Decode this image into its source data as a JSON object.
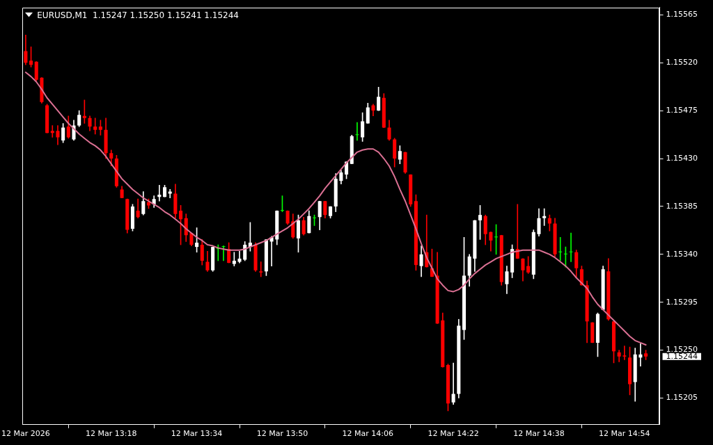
{
  "chart_data": {
    "type": "candlestick",
    "title": "EURUSD,M1  1.15247 1.15250 1.15241 1.15244",
    "categories": [
      "12 Mar 2026",
      null,
      null,
      null,
      null,
      null,
      null,
      null,
      null,
      null,
      null,
      null,
      null,
      null,
      null,
      null,
      "12 Mar 13:18",
      null,
      null,
      null,
      null,
      null,
      null,
      null,
      null,
      null,
      null,
      null,
      null,
      null,
      null,
      null,
      "12 Mar 13:34",
      null,
      null,
      null,
      null,
      null,
      null,
      null,
      null,
      null,
      null,
      null,
      null,
      null,
      null,
      null,
      "12 Mar 13:50",
      null,
      null,
      null,
      null,
      null,
      null,
      null,
      null,
      null,
      null,
      null,
      null,
      null,
      null,
      null,
      "12 Mar 14:06",
      null,
      null,
      null,
      null,
      null,
      null,
      null,
      null,
      null,
      null,
      null,
      null,
      null,
      null,
      null,
      "12 Mar 14:22",
      null,
      null,
      null,
      null,
      null,
      null,
      null,
      null,
      null,
      null,
      null,
      null,
      null,
      null,
      null,
      "12 Mar 14:38",
      null,
      null,
      null,
      null,
      null,
      null,
      null,
      null,
      null,
      null,
      null,
      null,
      null,
      null,
      null,
      "12 Mar 14:54",
      null,
      null,
      null,
      null
    ],
    "ohlc": [
      [
        1.15531,
        1.15546,
        1.15518,
        1.1552
      ],
      [
        1.15522,
        1.15535,
        1.15516,
        1.15518
      ],
      [
        1.15521,
        1.15521,
        1.15503,
        1.15504
      ],
      [
        1.15506,
        1.15506,
        1.15482,
        1.15483
      ],
      [
        1.1548,
        1.15481,
        1.15454,
        1.15454
      ],
      [
        1.15456,
        1.15461,
        1.1545,
        1.15454
      ],
      [
        1.15456,
        1.15461,
        1.15443,
        1.1545
      ],
      [
        1.15447,
        1.15463,
        1.15445,
        1.15459
      ],
      [
        1.1546,
        1.1547,
        1.15449,
        1.1545
      ],
      [
        1.15448,
        1.15466,
        1.15447,
        1.15461
      ],
      [
        1.15461,
        1.15475,
        1.1546,
        1.15471
      ],
      [
        1.1547,
        1.15485,
        1.15463,
        1.15468
      ],
      [
        1.15468,
        1.1547,
        1.15456,
        1.1546
      ],
      [
        1.1546,
        1.15468,
        1.15453,
        1.15457
      ],
      [
        1.1546,
        1.15466,
        1.15452,
        1.15457
      ],
      [
        1.15457,
        1.15468,
        1.1543,
        1.15435
      ],
      [
        1.15435,
        1.15438,
        1.15423,
        1.1543
      ],
      [
        1.1543,
        1.15433,
        1.15403,
        1.15404
      ],
      [
        1.15401,
        1.15404,
        1.15393,
        1.15393
      ],
      [
        1.15392,
        1.15392,
        1.1536,
        1.15363
      ],
      [
        1.15364,
        1.15387,
        1.15362,
        1.15385
      ],
      [
        1.15381,
        1.15392,
        1.15374,
        1.15375
      ],
      [
        1.15378,
        1.15399,
        1.15377,
        1.1539
      ],
      [
        1.15389,
        1.15392,
        1.15383,
        1.15386
      ],
      [
        1.15387,
        1.15395,
        1.15384,
        1.15392
      ],
      [
        1.15394,
        1.15405,
        1.1539,
        1.15396
      ],
      [
        1.15394,
        1.15405,
        1.15394,
        1.15403
      ],
      [
        1.15397,
        1.15401,
        1.15393,
        1.15399
      ],
      [
        1.15397,
        1.15406,
        1.15374,
        1.15378
      ],
      [
        1.15381,
        1.15386,
        1.15349,
        1.15373
      ],
      [
        1.15374,
        1.15378,
        1.15352,
        1.15358
      ],
      [
        1.1536,
        1.1536,
        1.15348,
        1.15349
      ],
      [
        1.15347,
        1.15365,
        1.15342,
        1.15351
      ],
      [
        1.15349,
        1.15354,
        1.1533,
        1.15334
      ],
      [
        1.15333,
        1.15343,
        1.15324,
        1.15325
      ],
      [
        1.15325,
        1.15347,
        1.15324,
        1.15347
      ],
      [
        1.15345,
        1.15349,
        1.15334,
        1.15345
      ],
      [
        1.15347,
        1.15348,
        1.15334,
        1.15347
      ],
      [
        1.15345,
        1.15351,
        1.15332,
        1.15332
      ],
      [
        1.15331,
        1.15342,
        1.15329,
        1.15334
      ],
      [
        1.15333,
        1.15343,
        1.15332,
        1.15336
      ],
      [
        1.15335,
        1.15352,
        1.15334,
        1.15349
      ],
      [
        1.15347,
        1.1537,
        1.15343,
        1.15351
      ],
      [
        1.15349,
        1.15351,
        1.15324,
        1.15325
      ],
      [
        1.15324,
        1.15333,
        1.15319,
        1.15323
      ],
      [
        1.15324,
        1.15354,
        1.1532,
        1.15354
      ],
      [
        1.15352,
        1.15357,
        1.15329,
        1.15356
      ],
      [
        1.15354,
        1.15381,
        1.15349,
        1.15381
      ],
      [
        1.15381,
        1.15395,
        1.1538,
        1.15381
      ],
      [
        1.15381,
        1.15381,
        1.15368,
        1.15369
      ],
      [
        1.15371,
        1.15378,
        1.15355,
        1.15356
      ],
      [
        1.15355,
        1.15377,
        1.15342,
        1.15372
      ],
      [
        1.15372,
        1.15375,
        1.15358,
        1.15359
      ],
      [
        1.1536,
        1.15381,
        1.1536,
        1.15376
      ],
      [
        1.15374,
        1.15377,
        1.15367,
        1.15374
      ],
      [
        1.15375,
        1.1539,
        1.15363,
        1.1539
      ],
      [
        1.1539,
        1.1539,
        1.15374,
        1.15377
      ],
      [
        1.15376,
        1.15385,
        1.15374,
        1.15385
      ],
      [
        1.15385,
        1.15416,
        1.1538,
        1.15411
      ],
      [
        1.15409,
        1.15419,
        1.15406,
        1.15417
      ],
      [
        1.15415,
        1.15427,
        1.15411,
        1.15427
      ],
      [
        1.15425,
        1.15452,
        1.15425,
        1.15451
      ],
      [
        1.15452,
        1.15464,
        1.15447,
        1.15452
      ],
      [
        1.1545,
        1.15473,
        1.15446,
        1.15465
      ],
      [
        1.15463,
        1.15482,
        1.15463,
        1.15478
      ],
      [
        1.1548,
        1.15481,
        1.1547,
        1.15475
      ],
      [
        1.15475,
        1.15497,
        1.15475,
        1.15488
      ],
      [
        1.15487,
        1.15491,
        1.15459,
        1.15459
      ],
      [
        1.15459,
        1.15466,
        1.15447,
        1.15448
      ],
      [
        1.15448,
        1.15449,
        1.15422,
        1.1543
      ],
      [
        1.15429,
        1.15442,
        1.15425,
        1.15437
      ],
      [
        1.15436,
        1.15436,
        1.15416,
        1.15417
      ],
      [
        1.15415,
        1.15415,
        1.15385,
        1.15387
      ],
      [
        1.1539,
        1.15396,
        1.15325,
        1.1533
      ],
      [
        1.15329,
        1.15348,
        1.15319,
        1.1534
      ],
      [
        1.15342,
        1.15377,
        1.15328,
        1.15328
      ],
      [
        1.15327,
        1.15345,
        1.15319,
        1.15319
      ],
      [
        1.1532,
        1.15342,
        1.15275,
        1.15275
      ],
      [
        1.15278,
        1.15285,
        1.15234,
        1.15234
      ],
      [
        1.15236,
        1.15237,
        1.15193,
        1.152
      ],
      [
        1.15201,
        1.15238,
        1.15199,
        1.15209
      ],
      [
        1.15209,
        1.15279,
        1.15205,
        1.15273
      ],
      [
        1.15269,
        1.15356,
        1.1526,
        1.1532
      ],
      [
        1.1532,
        1.1534,
        1.1531,
        1.15338
      ],
      [
        1.15336,
        1.15372,
        1.15324,
        1.15372
      ],
      [
        1.15372,
        1.15386,
        1.15354,
        1.15377
      ],
      [
        1.15376,
        1.15377,
        1.15349,
        1.15359
      ],
      [
        1.15361,
        1.15361,
        1.15343,
        1.15353
      ],
      [
        1.15356,
        1.15368,
        1.1534,
        1.15356
      ],
      [
        1.15358,
        1.15358,
        1.15311,
        1.15314
      ],
      [
        1.15312,
        1.15329,
        1.15303,
        1.15324
      ],
      [
        1.15323,
        1.15349,
        1.15318,
        1.15345
      ],
      [
        1.15345,
        1.15387,
        1.15336,
        1.15336
      ],
      [
        1.15336,
        1.15336,
        1.15315,
        1.15325
      ],
      [
        1.15329,
        1.15338,
        1.15322,
        1.15323
      ],
      [
        1.15321,
        1.15363,
        1.15317,
        1.15361
      ],
      [
        1.15359,
        1.15383,
        1.15357,
        1.15374
      ],
      [
        1.15374,
        1.15383,
        1.15367,
        1.15376
      ],
      [
        1.15374,
        1.15377,
        1.15362,
        1.15369
      ],
      [
        1.15369,
        1.15374,
        1.15338,
        1.1534
      ],
      [
        1.15342,
        1.15356,
        1.15334,
        1.15342
      ],
      [
        1.1534,
        1.15347,
        1.15328,
        1.1534
      ],
      [
        1.15342,
        1.1536,
        1.15333,
        1.15342
      ],
      [
        1.15342,
        1.15344,
        1.15318,
        1.15327
      ],
      [
        1.15326,
        1.15329,
        1.15311,
        1.15311
      ],
      [
        1.15311,
        1.15315,
        1.15257,
        1.15277
      ],
      [
        1.15276,
        1.15276,
        1.15257,
        1.15257
      ],
      [
        1.15257,
        1.15285,
        1.15244,
        1.15284
      ],
      [
        1.15288,
        1.15329,
        1.15288,
        1.15326
      ],
      [
        1.15324,
        1.15336,
        1.15278,
        1.15279
      ],
      [
        1.15277,
        1.15277,
        1.15238,
        1.15249
      ],
      [
        1.15248,
        1.1525,
        1.15239,
        1.15244
      ],
      [
        1.15245,
        1.15254,
        1.15241,
        1.15244
      ],
      [
        1.15243,
        1.15253,
        1.15208,
        1.15218
      ],
      [
        1.1522,
        1.15252,
        1.15202,
        1.15246
      ],
      [
        1.15243,
        1.15256,
        1.15235,
        1.15246
      ],
      [
        1.15247,
        1.1525,
        1.15241,
        1.15244
      ]
    ],
    "colors": [
      "#ff0000",
      "#ff0000",
      "#ff0000",
      "#ff0000",
      "#ff0000",
      "#ff0000",
      "#ff0000",
      "#ffffff",
      "#ff0000",
      "#ffffff",
      "#ffffff",
      "#ff0000",
      "#ff0000",
      "#ff0000",
      "#ff0000",
      "#ff0000",
      "#ff0000",
      "#ff0000",
      "#ff0000",
      "#ff0000",
      "#ffffff",
      "#ff0000",
      "#ffffff",
      "#ff0000",
      "#ffffff",
      "#ffffff",
      "#ffffff",
      "#ffffff",
      "#ff0000",
      "#ff0000",
      "#ff0000",
      "#ff0000",
      "#ffffff",
      "#ff0000",
      "#ff0000",
      "#ffffff",
      "#00ff00",
      "#00ff00",
      "#ff0000",
      "#ffffff",
      "#ffffff",
      "#ffffff",
      "#ffffff",
      "#ff0000",
      "#ff0000",
      "#ffffff",
      "#ffffff",
      "#ffffff",
      "#00ff00",
      "#ff0000",
      "#ff0000",
      "#ffffff",
      "#ff0000",
      "#ffffff",
      "#00ff00",
      "#ffffff",
      "#ff0000",
      "#ffffff",
      "#ffffff",
      "#ffffff",
      "#ffffff",
      "#ffffff",
      "#00ff00",
      "#ffffff",
      "#ffffff",
      "#ff0000",
      "#ffffff",
      "#ff0000",
      "#ff0000",
      "#ff0000",
      "#ffffff",
      "#ff0000",
      "#ff0000",
      "#ff0000",
      "#ffffff",
      "#ff0000",
      "#ff0000",
      "#ff0000",
      "#ff0000",
      "#ff0000",
      "#ffffff",
      "#ffffff",
      "#ffffff",
      "#ffffff",
      "#ffffff",
      "#ffffff",
      "#ff0000",
      "#ff0000",
      "#00ff00",
      "#ff0000",
      "#ffffff",
      "#ffffff",
      "#ff0000",
      "#ff0000",
      "#ff0000",
      "#ffffff",
      "#ffffff",
      "#ffffff",
      "#ff0000",
      "#ff0000",
      "#00ff00",
      "#00ff00",
      "#00ff00",
      "#ff0000",
      "#ff0000",
      "#ff0000",
      "#ff0000",
      "#ffffff",
      "#ffffff",
      "#ff0000",
      "#ff0000",
      "#ff0000",
      "#ff0000",
      "#ff0000",
      "#ffffff",
      "#ffffff",
      "#ff0000"
    ],
    "series": [
      {
        "type": "line",
        "color": "#db7093",
        "values": [
          1.15511,
          1.15507,
          1.15502,
          1.15495,
          1.15487,
          1.15481,
          1.15475,
          1.15469,
          1.15463,
          1.15458,
          1.15453,
          1.15449,
          1.15445,
          1.15442,
          1.15438,
          1.15432,
          1.15425,
          1.15418,
          1.15411,
          1.15406,
          1.15401,
          1.15397,
          1.15393,
          1.1539,
          1.15387,
          1.15384,
          1.1538,
          1.15377,
          1.15373,
          1.15369,
          1.15364,
          1.1536,
          1.15356,
          1.15353,
          1.15349,
          1.15348,
          1.15346,
          1.15345,
          1.15344,
          1.15344,
          1.15344,
          1.15345,
          1.15347,
          1.15349,
          1.15351,
          1.15353,
          1.15356,
          1.15359,
          1.15362,
          1.15365,
          1.15369,
          1.15373,
          1.15378,
          1.15383,
          1.15389,
          1.15395,
          1.15402,
          1.15408,
          1.15414,
          1.1542,
          1.15426,
          1.15431,
          1.15436,
          1.15438,
          1.15439,
          1.15439,
          1.15436,
          1.1543,
          1.15423,
          1.15413,
          1.15401,
          1.1539,
          1.15377,
          1.15364,
          1.1535,
          1.15337,
          1.15327,
          1.15317,
          1.15311,
          1.15306,
          1.15305,
          1.15307,
          1.15311,
          1.15317,
          1.15322,
          1.15326,
          1.1533,
          1.15333,
          1.15336,
          1.15338,
          1.1534,
          1.15342,
          1.15343,
          1.15344,
          1.15344,
          1.15344,
          1.15344,
          1.15342,
          1.1534,
          1.15337,
          1.15333,
          1.15329,
          1.15324,
          1.15318,
          1.15313,
          1.15308,
          1.153,
          1.15293,
          1.15288,
          1.15283,
          1.15278,
          1.15273,
          1.15268,
          1.15263,
          1.15259,
          1.15257,
          1.15255
        ]
      }
    ],
    "ylim": [
      1.1518,
      1.15572
    ],
    "yticks": [
      1.15205,
      {
        "value": 1.1525,
        "label": "1.15250"
      },
      1.15295,
      {
        "value": 1.1534,
        "label": "1.15340"
      },
      1.15385,
      {
        "value": 1.1543,
        "label": "1.15430"
      },
      1.15475,
      {
        "value": 1.1552,
        "label": "1.15520"
      },
      1.15565
    ],
    "annotations": [
      "1.15244"
    ]
  }
}
